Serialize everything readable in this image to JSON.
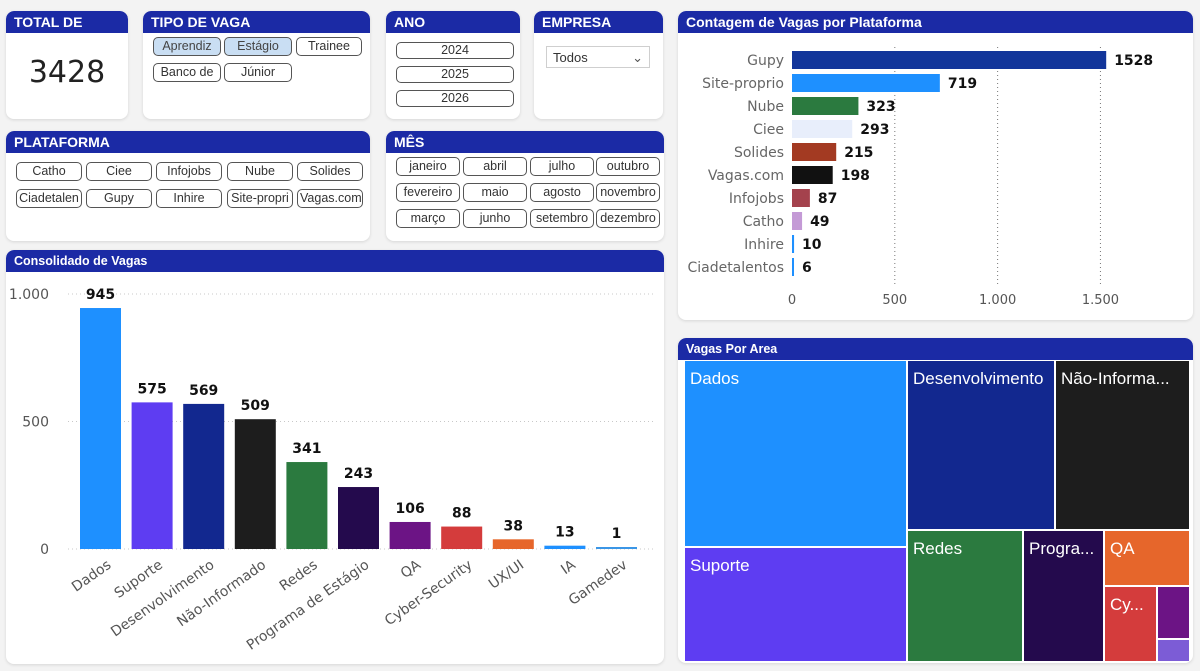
{
  "kpi": {
    "title": "TOTAL DE VAGAS",
    "value": "3428"
  },
  "tipo_vaga": {
    "title": "TIPO DE VAGA",
    "options": [
      "Aprendiz",
      "Estágio",
      "Trainee",
      "Banco de",
      "Júnior"
    ],
    "selected": [
      "Aprendiz",
      "Estágio"
    ]
  },
  "ano": {
    "title": "ANO",
    "options": [
      "2024",
      "2025",
      "2026"
    ]
  },
  "empresa": {
    "title": "EMPRESA",
    "value": "Todos"
  },
  "plataforma": {
    "title": "PLATAFORMA",
    "options": [
      "Catho",
      "Ciee",
      "Infojobs",
      "Nube",
      "Solides",
      "Ciadetalen",
      "Gupy",
      "Inhire",
      "Site-propri",
      "Vagas.com"
    ]
  },
  "mes": {
    "title": "MÊS",
    "options": [
      "janeiro",
      "abril",
      "julho",
      "outubro",
      "fevereiro",
      "maio",
      "agosto",
      "novembro",
      "março",
      "junho",
      "setembro",
      "dezembro"
    ]
  },
  "chart_data": [
    {
      "type": "bar",
      "orientation": "horizontal",
      "title": "Contagem de Vagas por Plataforma",
      "categories": [
        "Gupy",
        "Site-proprio",
        "Nube",
        "Ciee",
        "Solides",
        "Vagas.com",
        "Infojobs",
        "Catho",
        "Inhire",
        "Ciadetalentos"
      ],
      "values": [
        1528,
        719,
        323,
        293,
        215,
        198,
        87,
        49,
        10,
        6
      ],
      "colors": [
        "#12359a",
        "#1e90ff",
        "#2b7a3f",
        "#e8eefb",
        "#a33a22",
        "#111111",
        "#a4424d",
        "#c49ad6",
        "#1e90ff",
        "#1e90ff"
      ],
      "xticks": [
        "0",
        "500",
        "1.000",
        "1.500"
      ],
      "xlim": [
        0,
        1600
      ]
    },
    {
      "type": "bar",
      "title": "Consolidado de Vagas",
      "categories": [
        "Dados",
        "Suporte",
        "Desenvolvimento",
        "Não-Informado",
        "Redes",
        "Programa de Estágio",
        "QA",
        "Cyber-Security",
        "UX/UI",
        "IA",
        "Gamedev"
      ],
      "values": [
        945,
        575,
        569,
        509,
        341,
        243,
        106,
        88,
        38,
        13,
        1
      ],
      "colors": [
        "#1e90ff",
        "#5e3df2",
        "#12288f",
        "#1d1d1d",
        "#2b7a3f",
        "#240a4d",
        "#6c1485",
        "#d43c3c",
        "#e6662b",
        "#1e90ff",
        "#3b96e6"
      ],
      "yticks": [
        "1.000",
        "500",
        "0"
      ],
      "ylim": [
        0,
        1000
      ]
    },
    {
      "type": "treemap",
      "title": "Vagas Por Area",
      "labels": [
        "Dados",
        "Desenvolvimento",
        "Não-Informa...",
        "Suporte",
        "Redes",
        "Progra...",
        "QA",
        "Cy..."
      ],
      "values": [
        945,
        569,
        509,
        575,
        341,
        243,
        106,
        88
      ]
    }
  ]
}
